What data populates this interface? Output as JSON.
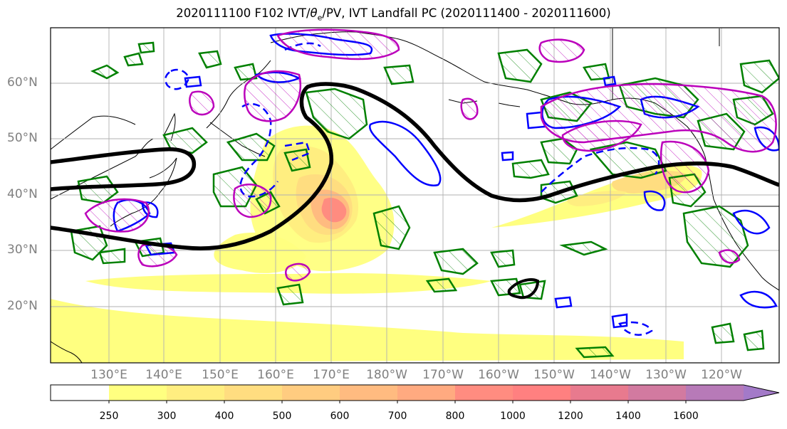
{
  "title": {
    "prefix": "2020111100 F102 IVT/",
    "theta": "θ",
    "theta_sub": "e",
    "suffix": "/PV, IVT Landfall PC (2020111400 - 2020111600)"
  },
  "lat_labels": [
    "60°N",
    "50°N",
    "40°N",
    "30°N",
    "20°N"
  ],
  "lon_labels": [
    "130°E",
    "140°E",
    "150°E",
    "160°E",
    "170°E",
    "180°W",
    "170°W",
    "160°W",
    "150°W",
    "140°W",
    "130°W",
    "120°W"
  ],
  "colorbar": {
    "ticks": [
      "250",
      "300",
      "400",
      "500",
      "600",
      "700",
      "800",
      "1000",
      "1200",
      "1400",
      "1600"
    ],
    "colors": [
      "#ffff80",
      "#ffee80",
      "#ffdd80",
      "#ffcc80",
      "#ffbb80",
      "#ffaa80",
      "#ff8c80",
      "#ff8080",
      "#e87a8e",
      "#d27aa0",
      "#b77ab8",
      "#a37ac8"
    ]
  },
  "legend_colors": {
    "theta_e": "#008000",
    "pv": "#0000ff",
    "pc": "#bb00bb",
    "landfall": "#000000"
  }
}
